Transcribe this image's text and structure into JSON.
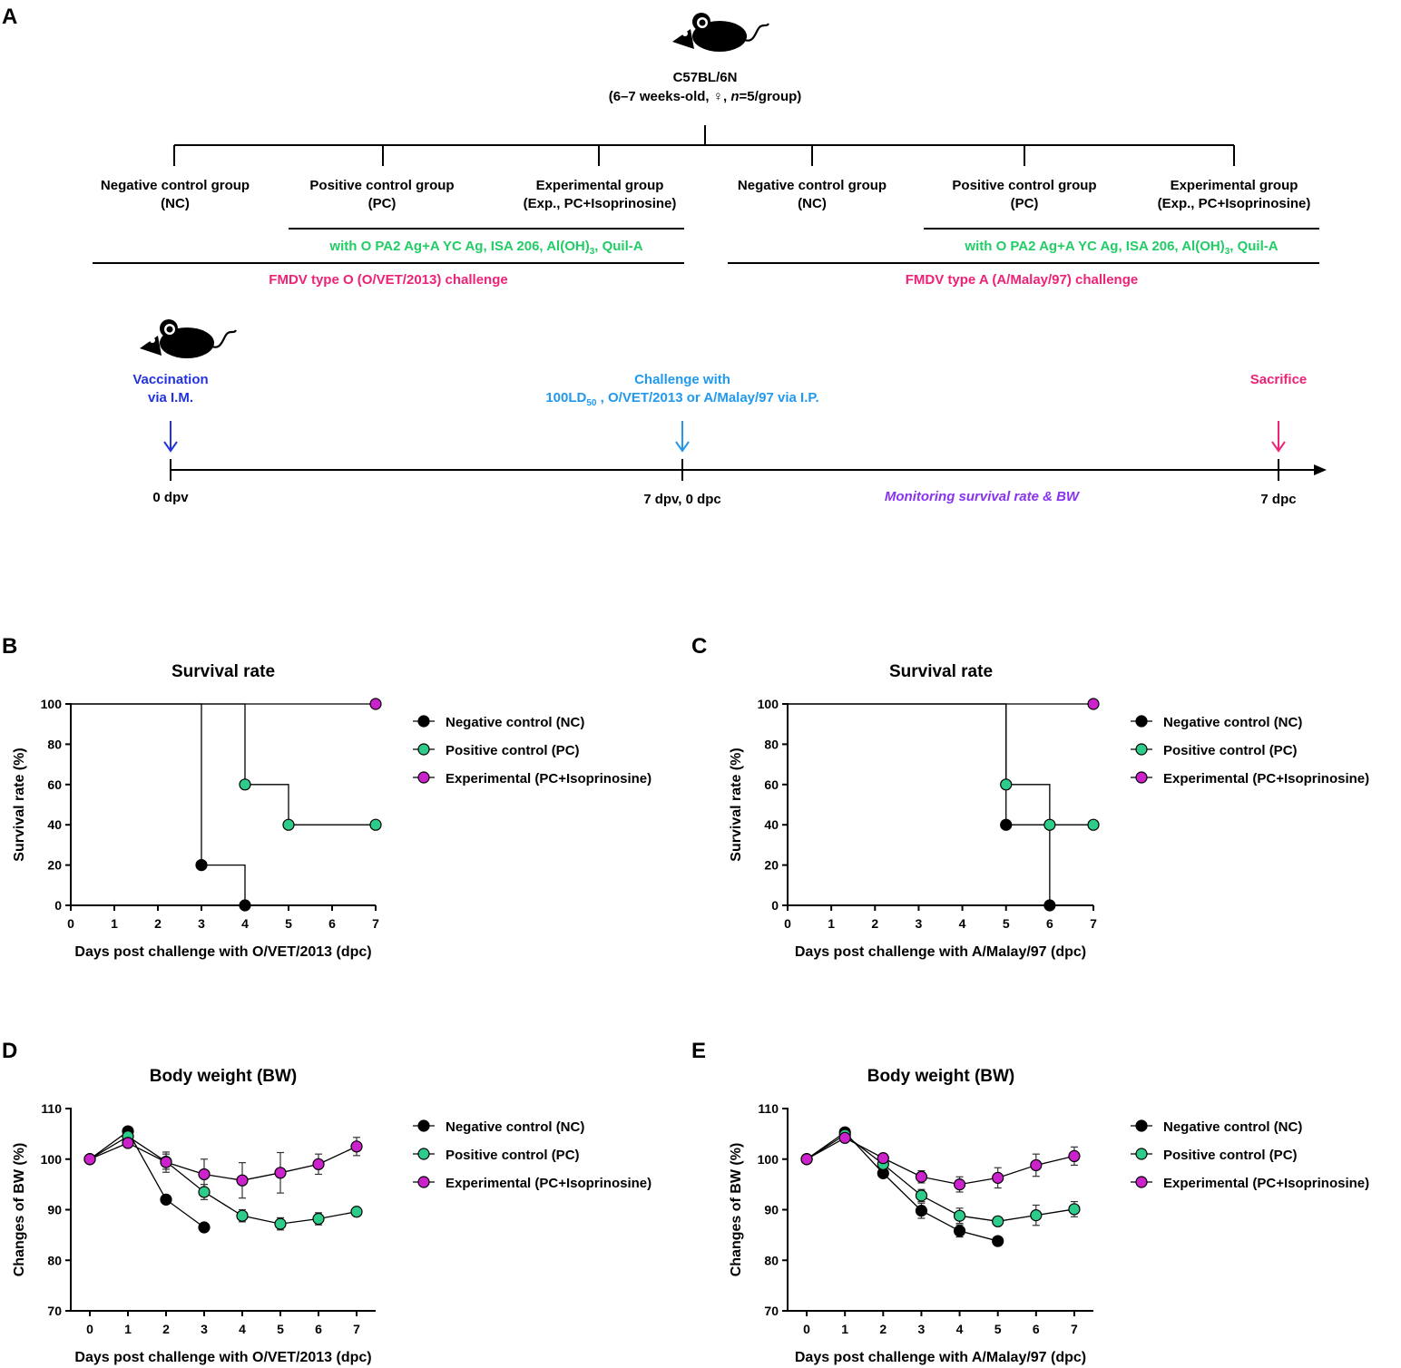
{
  "colors": {
    "black": "#000000",
    "nc": "#000000",
    "pc": "#2ecc8a",
    "exp": "#cc22cc",
    "green_text": "#22cc66",
    "pink_text": "#ee2277",
    "blue_text": "#2233dd",
    "lightblue_text": "#2299ee",
    "purple_text": "#8833ee"
  },
  "panel_a": {
    "letter": "A",
    "mouse_label": "C57BL/6N",
    "mouse_sub_pre": "(6–7 weeks-old, ♀, ",
    "mouse_sub_n": "n",
    "mouse_sub_post": "=5/group)",
    "left_groups": [
      {
        "name": "Negative control group",
        "abbr": "(NC)"
      },
      {
        "name": "Positive control group",
        "abbr": "(PC)"
      },
      {
        "name": "Experimental group",
        "abbr": "(Exp., PC+Isoprinosine)"
      }
    ],
    "right_groups": [
      {
        "name": "Negative control group",
        "abbr": "(NC)"
      },
      {
        "name": "Positive control group",
        "abbr": "(PC)"
      },
      {
        "name": "Experimental group",
        "abbr": "(Exp., PC+Isoprinosine)"
      }
    ],
    "vaccine_pre": "with O PA2 Ag+A YC Ag, ISA 206, Al(OH)",
    "vaccine_sub": "3",
    "vaccine_post": ",  Quil-A",
    "left_challenge": "FMDV type O (O/VET/2013)  challenge",
    "right_challenge": "FMDV type A (A/Malay/97) challenge",
    "timeline": {
      "vacc_line1": "Vaccination",
      "vacc_line2": "via I.M.",
      "chal_line1": "Challenge with",
      "chal_line2_pre": "100LD",
      "chal_line2_sub": "50",
      "chal_line2_post": " , O/VET/2013  or A/Malay/97 via I.P.",
      "sacrifice": "Sacrifice",
      "t0": "0 dpv",
      "t7": "7 dpv, 0 dpc",
      "t14": "7 dpc",
      "monitoring": "Monitoring survival rate & BW"
    }
  },
  "legend": {
    "nc": "Negative control (NC)",
    "pc": "Positive control (PC)",
    "exp": "Experimental (PC+Isoprinosine)"
  },
  "chart_data": [
    {
      "panel": "B",
      "type": "line",
      "subtype": "kaplan-meier",
      "title": "Survival rate",
      "xlabel": "Days post challenge with O/VET/2013 (dpc)",
      "ylabel": "Survival rate (%)",
      "xlim": [
        0,
        7
      ],
      "ylim": [
        0,
        100
      ],
      "xticks": [
        "0",
        "1",
        "2",
        "3",
        "4",
        "5",
        "6",
        "7"
      ],
      "yticks": [
        "0",
        "20",
        "40",
        "60",
        "80",
        "100"
      ],
      "series": [
        {
          "name": "Negative control (NC)",
          "key": "nc",
          "steps": [
            [
              0,
              100
            ],
            [
              3,
              20
            ],
            [
              4,
              0
            ]
          ],
          "points": [
            [
              3,
              20
            ],
            [
              4,
              0
            ]
          ]
        },
        {
          "name": "Positive control (PC)",
          "key": "pc",
          "steps": [
            [
              0,
              100
            ],
            [
              4,
              60
            ],
            [
              5,
              40
            ],
            [
              7,
              40
            ]
          ],
          "points": [
            [
              4,
              60
            ],
            [
              5,
              40
            ],
            [
              7,
              40
            ]
          ]
        },
        {
          "name": "Experimental (PC+Isoprinosine)",
          "key": "exp",
          "steps": [
            [
              0,
              100
            ],
            [
              7,
              100
            ]
          ],
          "points": [
            [
              7,
              100
            ]
          ]
        }
      ]
    },
    {
      "panel": "C",
      "type": "line",
      "subtype": "kaplan-meier",
      "title": "Survival rate",
      "xlabel": "Days post challenge with A/Malay/97 (dpc)",
      "ylabel": "Survival rate (%)",
      "xlim": [
        0,
        7
      ],
      "ylim": [
        0,
        100
      ],
      "xticks": [
        "0",
        "1",
        "2",
        "3",
        "4",
        "5",
        "6",
        "7"
      ],
      "yticks": [
        "0",
        "20",
        "40",
        "60",
        "80",
        "100"
      ],
      "series": [
        {
          "name": "Negative control (NC)",
          "key": "nc",
          "steps": [
            [
              0,
              100
            ],
            [
              5,
              40
            ],
            [
              6,
              0
            ]
          ],
          "points": [
            [
              5,
              40
            ],
            [
              6,
              0
            ]
          ]
        },
        {
          "name": "Positive control (PC)",
          "key": "pc",
          "steps": [
            [
              0,
              100
            ],
            [
              5,
              60
            ],
            [
              6,
              40
            ],
            [
              7,
              40
            ]
          ],
          "points": [
            [
              5,
              60
            ],
            [
              6,
              40
            ],
            [
              7,
              40
            ]
          ]
        },
        {
          "name": "Experimental (PC+Isoprinosine)",
          "key": "exp",
          "steps": [
            [
              0,
              100
            ],
            [
              7,
              100
            ]
          ],
          "points": [
            [
              7,
              100
            ]
          ]
        }
      ]
    },
    {
      "panel": "D",
      "type": "line",
      "title": "Body weight (BW)",
      "xlabel": "Days post challenge with O/VET/2013 (dpc)",
      "ylabel": "Changes of BW (%)",
      "xlim": [
        -0.5,
        7.5
      ],
      "ylim": [
        70,
        110
      ],
      "xticks": [
        "0",
        "1",
        "2",
        "3",
        "4",
        "5",
        "6",
        "7"
      ],
      "yticks": [
        "70",
        "80",
        "90",
        "100",
        "110"
      ],
      "series": [
        {
          "name": "Negative control (NC)",
          "key": "nc",
          "x": [
            0,
            1,
            2,
            3
          ],
          "values": [
            100,
            105.5,
            92,
            86.5
          ],
          "errors": [
            0,
            0.5,
            0.5,
            0.5
          ]
        },
        {
          "name": "Positive control (PC)",
          "key": "pc",
          "x": [
            0,
            1,
            2,
            3,
            4,
            5,
            6,
            7
          ],
          "values": [
            100,
            104.5,
            99.5,
            93.5,
            88.8,
            87.2,
            88.2,
            89.6
          ],
          "errors": [
            0,
            0.5,
            1.5,
            1.5,
            1.2,
            1.2,
            1.2,
            0.6
          ]
        },
        {
          "name": "Experimental (PC+Isoprinosine)",
          "key": "exp",
          "x": [
            0,
            1,
            2,
            3,
            4,
            5,
            6,
            7
          ],
          "values": [
            100,
            103.2,
            99.4,
            97,
            95.8,
            97.3,
            99,
            102.5
          ],
          "errors": [
            0,
            0.5,
            2,
            3,
            3.5,
            4,
            2,
            1.8
          ]
        }
      ]
    },
    {
      "panel": "E",
      "type": "line",
      "title": "Body weight (BW)",
      "xlabel": "Days post challenge with A/Malay/97 (dpc)",
      "ylabel": "Changes of BW (%)",
      "xlim": [
        -0.5,
        7.5
      ],
      "ylim": [
        70,
        110
      ],
      "xticks": [
        "0",
        "1",
        "2",
        "3",
        "4",
        "5",
        "6",
        "7"
      ],
      "yticks": [
        "70",
        "80",
        "90",
        "100",
        "110"
      ],
      "series": [
        {
          "name": "Negative control (NC)",
          "key": "nc",
          "x": [
            0,
            1,
            2,
            3,
            4,
            5
          ],
          "values": [
            100,
            105.3,
            97.2,
            89.8,
            85.8,
            83.8
          ],
          "errors": [
            0,
            0.5,
            0.8,
            1.5,
            1.2,
            0.4
          ]
        },
        {
          "name": "Positive control (PC)",
          "key": "pc",
          "x": [
            0,
            1,
            2,
            3,
            4,
            5,
            6,
            7
          ],
          "values": [
            100,
            104.8,
            99,
            92.8,
            88.8,
            87.7,
            88.9,
            90.1
          ],
          "errors": [
            0,
            0.5,
            0.8,
            1.2,
            1.5,
            0.8,
            2,
            1.5
          ]
        },
        {
          "name": "Experimental (PC+Isoprinosine)",
          "key": "exp",
          "x": [
            0,
            1,
            2,
            3,
            4,
            5,
            6,
            7
          ],
          "values": [
            100,
            104.2,
            100.2,
            96.5,
            95,
            96.3,
            98.8,
            100.6
          ],
          "errors": [
            0,
            0.5,
            0.5,
            1.2,
            1.5,
            2,
            2.2,
            1.8
          ]
        }
      ]
    }
  ]
}
